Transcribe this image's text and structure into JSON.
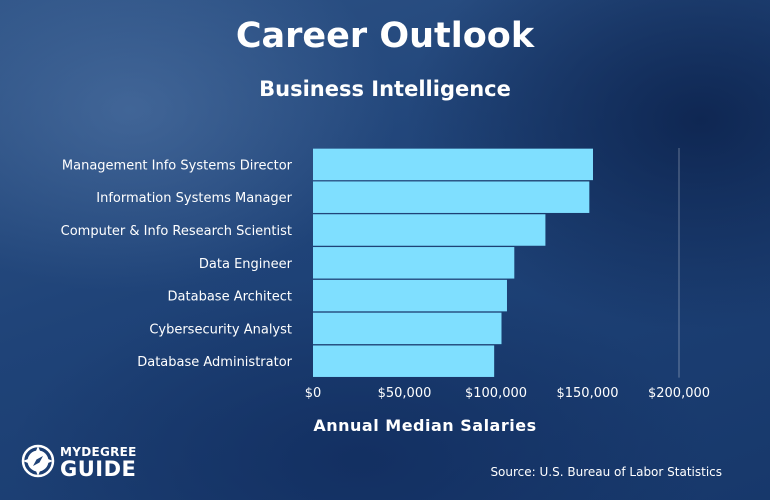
{
  "header": {
    "title": "Career Outlook",
    "subtitle": "Business Intelligence"
  },
  "chart_data": {
    "type": "bar",
    "orientation": "horizontal",
    "title": "Career Outlook",
    "subtitle": "Business Intelligence",
    "xlabel": "Annual Median Salaries",
    "ylabel": "",
    "categories": [
      "Management Info Systems Director",
      "Information Systems Manager",
      "Computer & Info Research Scientist",
      "Data Engineer",
      "Database Architect",
      "Cybersecurity Analyst",
      "Database Administrator"
    ],
    "values": [
      153000,
      151000,
      127000,
      110000,
      106000,
      103000,
      99000
    ],
    "xlim": [
      0,
      200000
    ],
    "ticks": [
      0,
      50000,
      100000,
      150000,
      200000
    ],
    "tick_labels": [
      "$0",
      "$50,000",
      "$100,000",
      "$150,000",
      "$200,000"
    ],
    "bar_color": "#7fdfff",
    "grid": "vertical at $200,000 only",
    "legend": "none"
  },
  "footer": {
    "source": "Source: U.S. Bureau of Labor Statistics",
    "logo_line1": "MYDEGREE",
    "logo_line2": "GUIDE",
    "logo_icon": "compass-icon"
  }
}
